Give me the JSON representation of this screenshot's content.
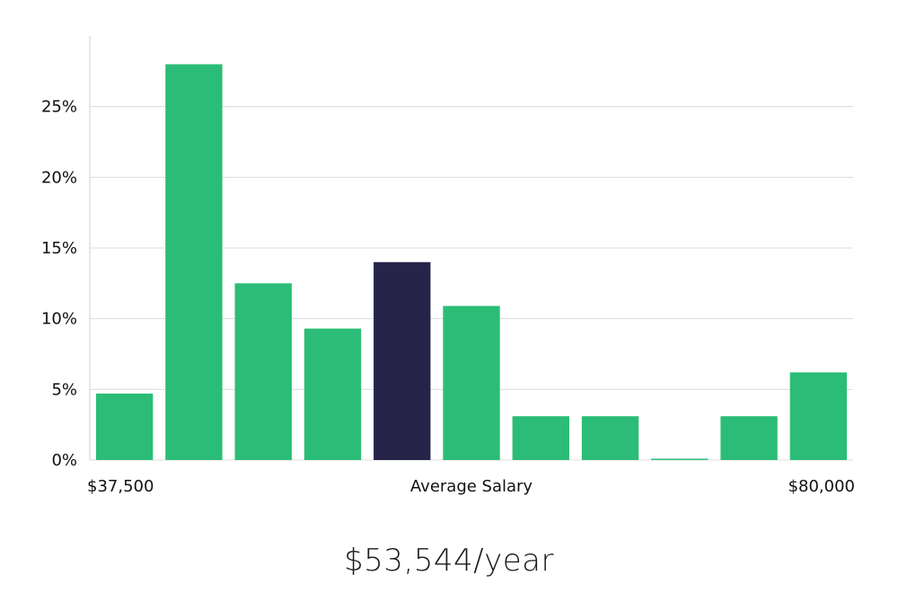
{
  "chart_data": {
    "type": "bar",
    "values": [
      4.7,
      28.0,
      12.5,
      9.3,
      14.0,
      10.9,
      3.1,
      3.1,
      0.0,
      3.1,
      6.2
    ],
    "highlight_index": 4,
    "ylim": [
      0,
      30
    ],
    "yticks": [
      0,
      5,
      10,
      15,
      20,
      25
    ],
    "ytick_labels": [
      "0%",
      "5%",
      "10%",
      "15%",
      "20%",
      "25%"
    ],
    "x_min_label": "$37,500",
    "x_center_label": "Average Salary",
    "x_max_label": "$80,000",
    "grid": true,
    "colors": {
      "bar": "#2bbd77",
      "highlight": "#27244a",
      "grid": "#dcdcdc",
      "axis": "#cfcfcf"
    }
  },
  "summary": {
    "salary_text": "$53,544/year"
  }
}
